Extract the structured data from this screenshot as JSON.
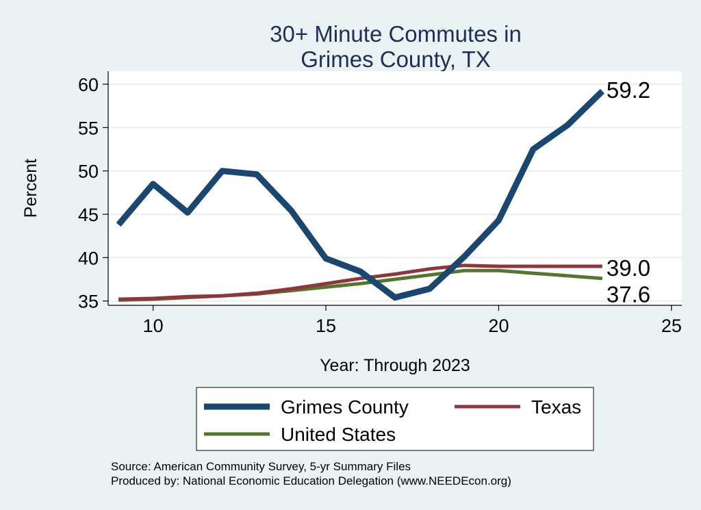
{
  "chart_data": {
    "type": "line",
    "title_lines": [
      "30+ Minute Commutes in",
      "Grimes County, TX"
    ],
    "xlabel": "Year: Through 2023",
    "ylabel": "Percent",
    "xlim": [
      8.7,
      25.3
    ],
    "ylim": [
      34.5,
      61.5
    ],
    "xticks": [
      10,
      15,
      20,
      25
    ],
    "yticks": [
      35,
      40,
      45,
      50,
      55,
      60
    ],
    "grid": true,
    "legend_position": "bottom",
    "x": [
      9,
      10,
      11,
      12,
      13,
      14,
      15,
      16,
      17,
      18,
      19,
      20,
      21,
      22,
      23
    ],
    "series": [
      {
        "name": "Grimes County",
        "color": "#1a476f",
        "values": [
          43.8,
          48.5,
          45.2,
          50.0,
          49.6,
          45.4,
          39.9,
          38.4,
          35.4,
          36.4,
          40.1,
          44.3,
          52.5,
          55.3,
          59.2
        ],
        "end_label": "59.2"
      },
      {
        "name": "Texas",
        "color": "#90353b",
        "values": [
          35.2,
          35.3,
          35.5,
          35.6,
          35.9,
          36.4,
          37.0,
          37.6,
          38.1,
          38.7,
          39.1,
          39.0,
          39.0,
          39.0,
          39.0
        ],
        "end_label": "39.0"
      },
      {
        "name": "United States",
        "color": "#55752f",
        "values": [
          35.1,
          35.2,
          35.4,
          35.6,
          35.8,
          36.2,
          36.6,
          37.0,
          37.5,
          38.0,
          38.5,
          38.5,
          38.2,
          37.9,
          37.6
        ],
        "end_label": "37.6"
      }
    ]
  },
  "notes": {
    "source": "Source: American Community Survey, 5-yr Summary Files",
    "produced": "Produced by: National Economic Education Delegation (www.NEEDEcon.org)"
  }
}
